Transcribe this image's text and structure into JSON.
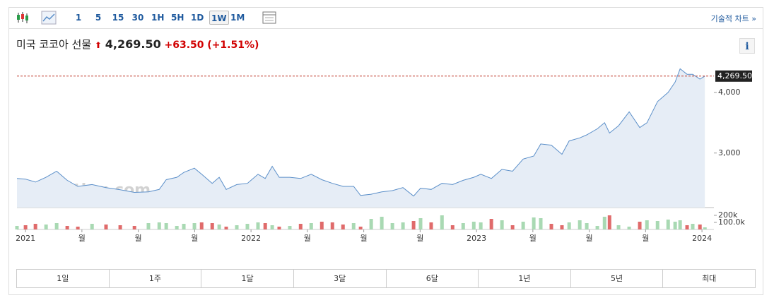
{
  "toolbar": {
    "intervals": [
      "1",
      "5",
      "15",
      "30",
      "1H",
      "5H",
      "1D",
      "1W",
      "1M"
    ],
    "selected_interval": "1W",
    "technical_link": "기술적 차트 »"
  },
  "header": {
    "name": "미국 코코아 선물",
    "price": "4,269.50",
    "change": "+63.50",
    "change_pct": "(+1.51%)",
    "info": "i"
  },
  "chart_data": {
    "type": "line",
    "watermark": "Investing.com",
    "x": [
      2020.962,
      2021.0,
      2021.044,
      2021.091,
      2021.138,
      2021.185,
      2021.232,
      2021.295,
      2021.357,
      2021.42,
      2021.483,
      2021.545,
      2021.593,
      2021.624,
      2021.671,
      2021.702,
      2021.749,
      2021.781,
      2021.828,
      2021.859,
      2021.89,
      2021.937,
      2021.984,
      2022.031,
      2022.063,
      2022.094,
      2022.125,
      2022.172,
      2022.22,
      2022.267,
      2022.314,
      2022.361,
      2022.408,
      2022.455,
      2022.486,
      2022.533,
      2022.58,
      2022.627,
      2022.674,
      2022.721,
      2022.752,
      2022.799,
      2022.847,
      2022.894,
      2022.941,
      2022.988,
      2023.019,
      2023.066,
      2023.113,
      2023.16,
      2023.207,
      2023.254,
      2023.285,
      2023.332,
      2023.379,
      2023.411,
      2023.458,
      2023.489,
      2023.536,
      2023.568,
      2023.59,
      2023.63,
      2023.677,
      2023.724,
      2023.756,
      2023.803,
      2023.85,
      2023.881,
      2023.903,
      2023.934,
      2023.959,
      2023.991,
      2024.013
    ],
    "series": [
      {
        "name": "미국 코코아 선물",
        "color": "#5b8fc9",
        "fill": "#e6edf6",
        "values": [
          2580,
          2570,
          2520,
          2600,
          2700,
          2550,
          2450,
          2480,
          2430,
          2395,
          2350,
          2360,
          2400,
          2560,
          2600,
          2680,
          2750,
          2650,
          2500,
          2600,
          2400,
          2480,
          2500,
          2650,
          2580,
          2780,
          2600,
          2600,
          2580,
          2650,
          2560,
          2500,
          2450,
          2450,
          2300,
          2320,
          2360,
          2380,
          2430,
          2290,
          2420,
          2400,
          2500,
          2480,
          2550,
          2600,
          2650,
          2580,
          2730,
          2700,
          2900,
          2950,
          3150,
          3130,
          2980,
          3200,
          3250,
          3300,
          3400,
          3500,
          3330,
          3450,
          3680,
          3420,
          3500,
          3850,
          4000,
          4170,
          4390,
          4300,
          4300,
          4220,
          4269.5
        ]
      },
      {
        "name": "Volume",
        "axis": "y2",
        "up_color": "#a9d9b3",
        "down_color": "#e06b6b",
        "values": [
          50000,
          60000,
          80000,
          70000,
          90000,
          50000,
          40000,
          80000,
          70000,
          60000,
          50000,
          90000,
          100000,
          90000,
          50000,
          80000,
          90000,
          100000,
          90000,
          70000,
          40000,
          60000,
          80000,
          100000,
          90000,
          60000,
          40000,
          50000,
          80000,
          90000,
          110000,
          100000,
          70000,
          90000,
          40000,
          150000,
          180000,
          90000,
          100000,
          120000,
          160000,
          100000,
          200000,
          60000,
          90000,
          110000,
          100000,
          150000,
          130000,
          60000,
          110000,
          170000,
          160000,
          80000,
          60000,
          100000,
          130000,
          90000,
          50000,
          180000,
          200000,
          60000,
          40000,
          110000,
          130000,
          120000,
          140000,
          110000,
          130000,
          60000,
          80000,
          70000,
          30000
        ]
      }
    ],
    "xlim": [
      2020.962,
      2024.053
    ],
    "xticks": [
      2021,
      {
        "value": 2021.25,
        "label": "월"
      },
      {
        "value": 2021.5,
        "label": "월"
      },
      {
        "value": 2021.75,
        "label": "월"
      },
      2022,
      {
        "value": 2022.25,
        "label": "월"
      },
      {
        "value": 2022.5,
        "label": "월"
      },
      {
        "value": 2022.75,
        "label": "월"
      },
      2023,
      {
        "value": 2023.25,
        "label": "월"
      },
      {
        "value": 2023.5,
        "label": "월"
      },
      {
        "value": 2023.75,
        "label": "월"
      },
      2024
    ],
    "ylim": [
      2100,
      4500
    ],
    "yticks": [
      {
        "value": 3000,
        "label": "3,000"
      },
      {
        "value": 4000,
        "label": "4,000"
      }
    ],
    "y2lim": [
      0,
      250000
    ],
    "y2ticks": [
      {
        "value": 200000,
        "label": "200k"
      },
      {
        "value": 100000,
        "label": "100.0k"
      }
    ],
    "last_value": {
      "value": 4269.5,
      "label": "4,269.50"
    }
  },
  "range_buttons": [
    "1일",
    "1주",
    "1달",
    "3달",
    "6달",
    "1년",
    "5년",
    "최대"
  ]
}
